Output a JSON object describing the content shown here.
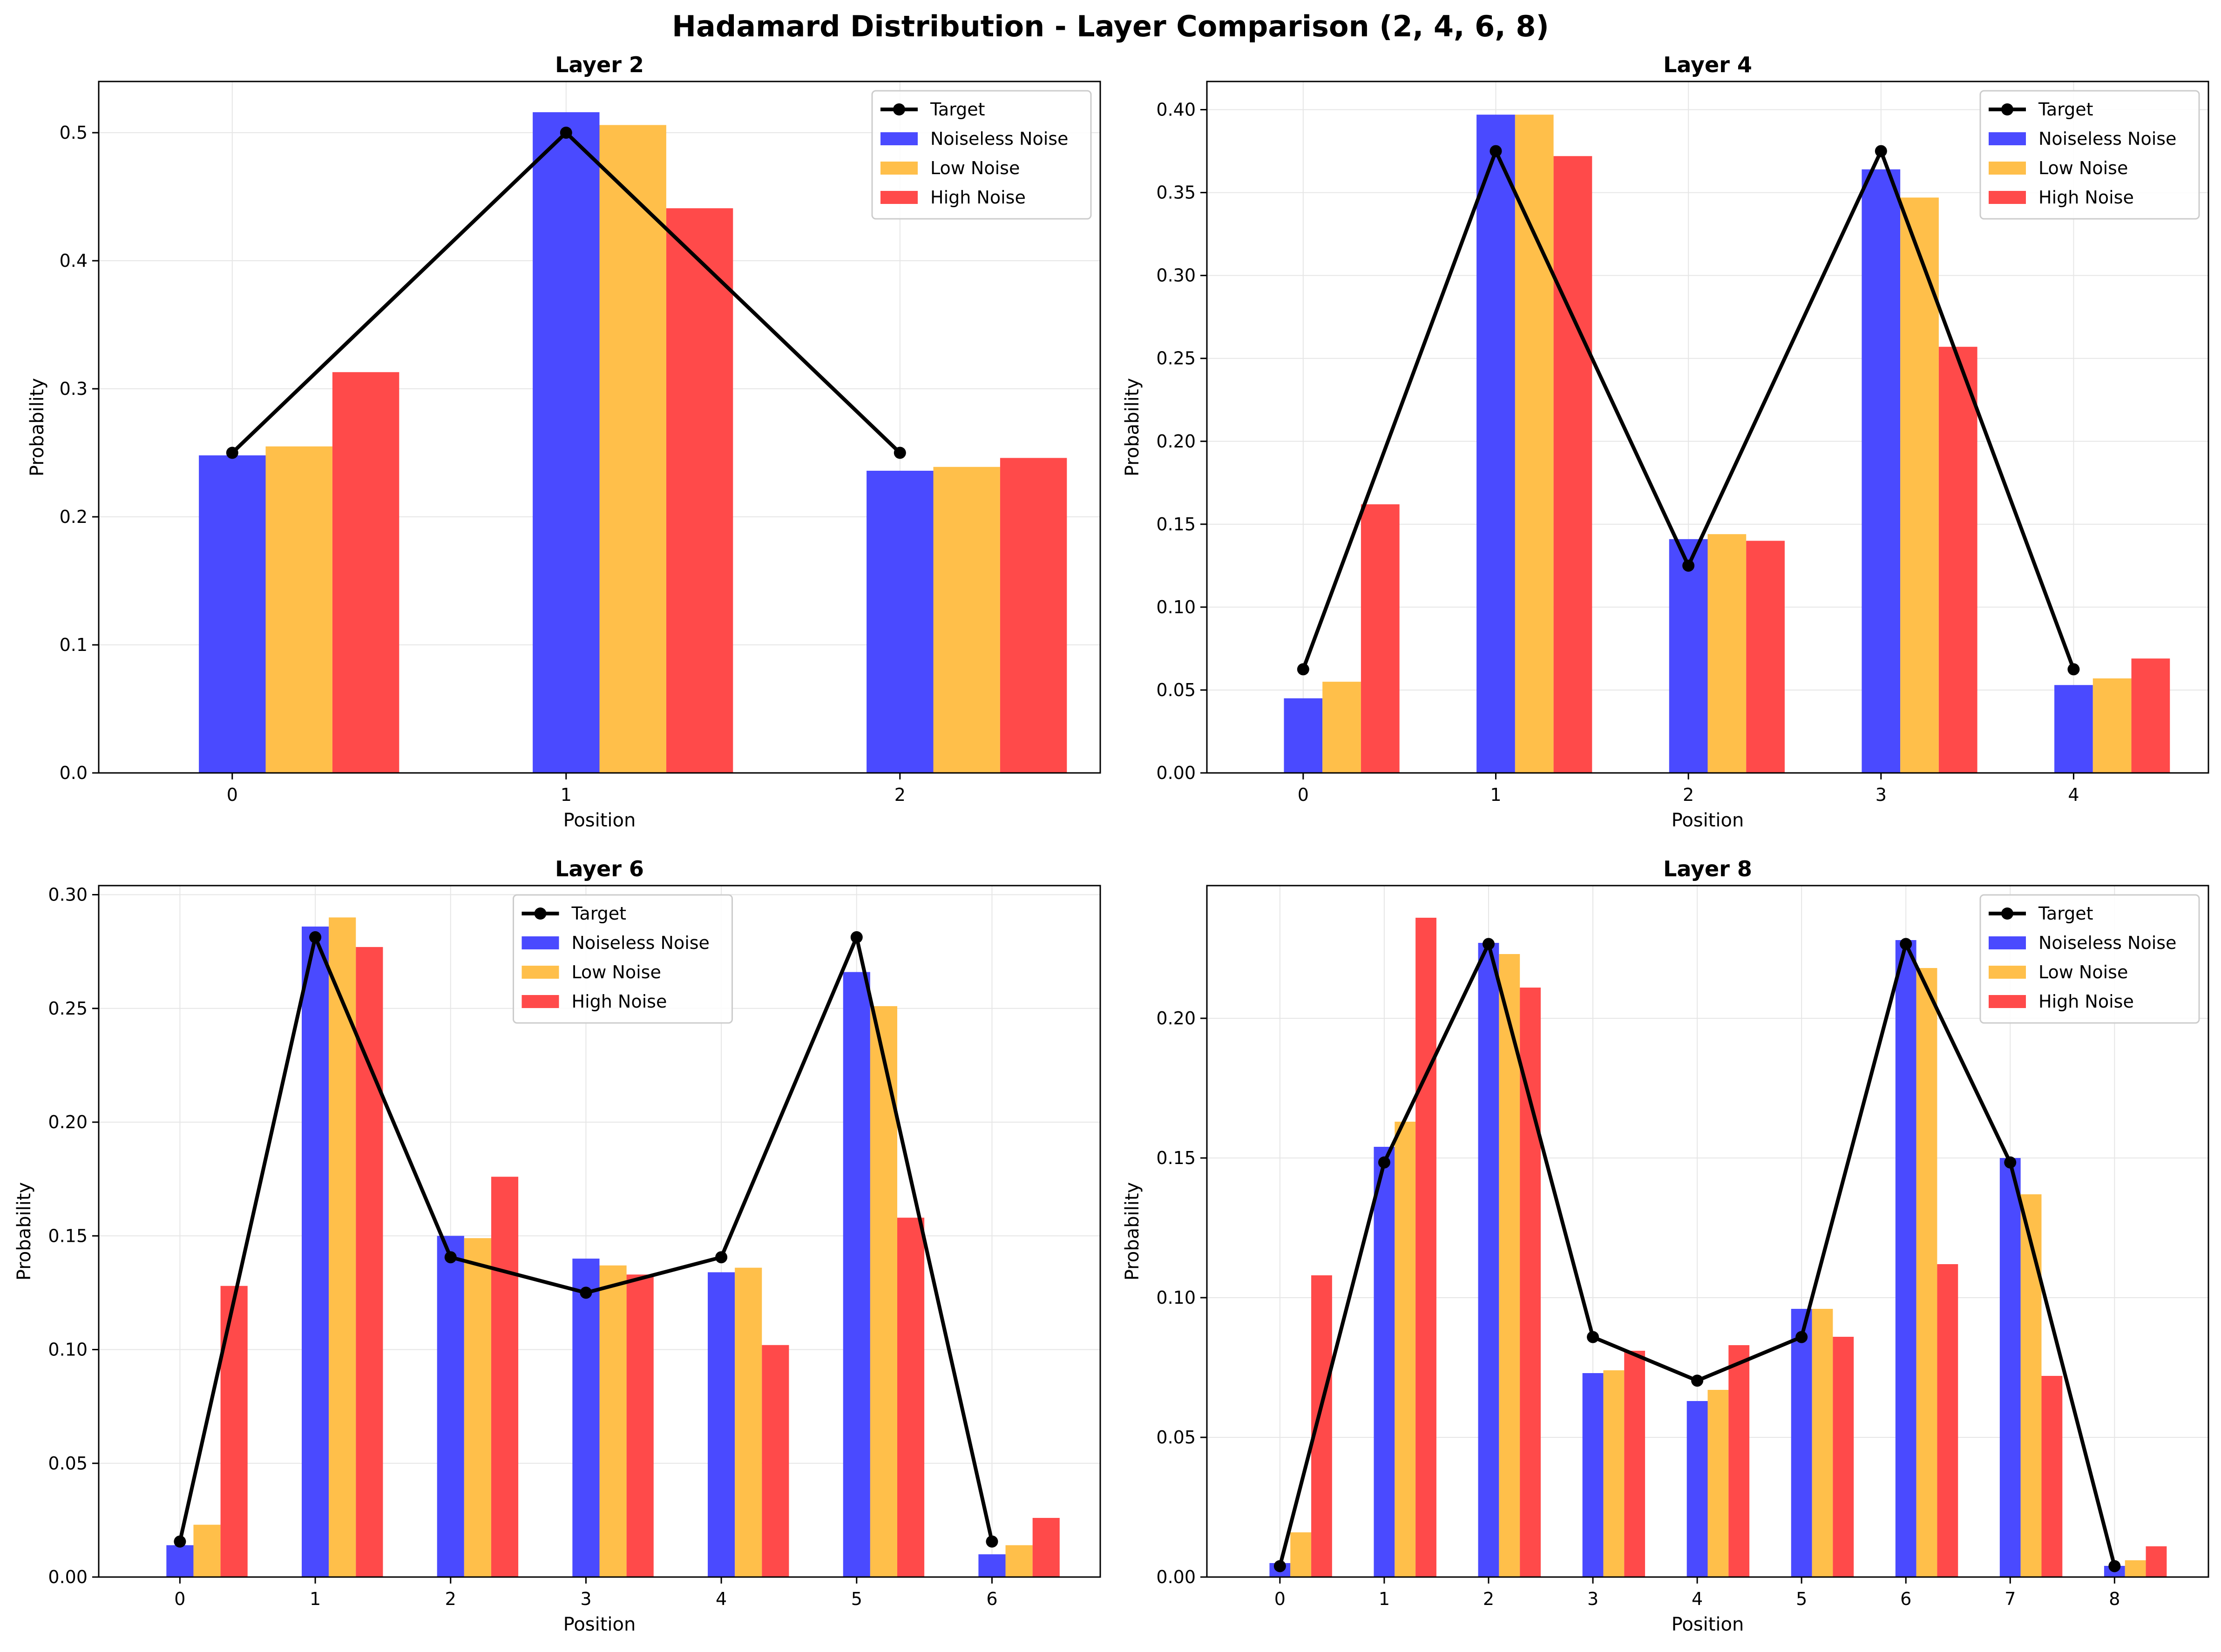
{
  "title": "Hadamard Distribution - Layer Comparison (2, 4, 6, 8)",
  "colors": {
    "target": "#000000",
    "noiseless": "#4a4aff",
    "low": "#ffbf4a",
    "high": "#ff4a4a",
    "grid": "#e6e6e6"
  },
  "legend_labels": [
    "Target",
    "Noiseless Noise",
    "Low Noise",
    "High Noise"
  ],
  "chart_data": [
    {
      "type": "bar",
      "title": "Layer 2",
      "xlabel": "Position",
      "ylabel": "Probability",
      "categories": [
        "0",
        "1",
        "2"
      ],
      "ylim": [
        0,
        0.54
      ],
      "yticks": [
        "0.0",
        "0.1",
        "0.2",
        "0.3",
        "0.4",
        "0.5"
      ],
      "legend_position": "top-right",
      "series": [
        {
          "name": "Noiseless Noise",
          "values": [
            0.248,
            0.516,
            0.236
          ]
        },
        {
          "name": "Low Noise",
          "values": [
            0.255,
            0.506,
            0.239
          ]
        },
        {
          "name": "High Noise",
          "values": [
            0.313,
            0.441,
            0.246
          ]
        }
      ],
      "target": {
        "name": "Target",
        "values": [
          0.25,
          0.5,
          0.25
        ]
      }
    },
    {
      "type": "bar",
      "title": "Layer 4",
      "xlabel": "Position",
      "ylabel": "Probability",
      "categories": [
        "0",
        "1",
        "2",
        "3",
        "4"
      ],
      "ylim": [
        0,
        0.417
      ],
      "yticks": [
        "0.00",
        "0.05",
        "0.10",
        "0.15",
        "0.20",
        "0.25",
        "0.30",
        "0.35",
        "0.40"
      ],
      "legend_position": "top-right",
      "series": [
        {
          "name": "Noiseless Noise",
          "values": [
            0.045,
            0.397,
            0.141,
            0.364,
            0.053
          ]
        },
        {
          "name": "Low Noise",
          "values": [
            0.055,
            0.397,
            0.144,
            0.347,
            0.057
          ]
        },
        {
          "name": "High Noise",
          "values": [
            0.162,
            0.372,
            0.14,
            0.257,
            0.069
          ]
        }
      ],
      "target": {
        "name": "Target",
        "values": [
          0.0625,
          0.375,
          0.125,
          0.375,
          0.0625
        ]
      }
    },
    {
      "type": "bar",
      "title": "Layer 6",
      "xlabel": "Position",
      "ylabel": "Probability",
      "categories": [
        "0",
        "1",
        "2",
        "3",
        "4",
        "5",
        "6"
      ],
      "ylim": [
        0,
        0.304
      ],
      "yticks": [
        "0.00",
        "0.05",
        "0.10",
        "0.15",
        "0.20",
        "0.25",
        "0.30"
      ],
      "legend_position": "top-center",
      "series": [
        {
          "name": "Noiseless Noise",
          "values": [
            0.014,
            0.286,
            0.15,
            0.14,
            0.134,
            0.266,
            0.01
          ]
        },
        {
          "name": "Low Noise",
          "values": [
            0.023,
            0.29,
            0.149,
            0.137,
            0.136,
            0.251,
            0.014
          ]
        },
        {
          "name": "High Noise",
          "values": [
            0.128,
            0.277,
            0.176,
            0.133,
            0.102,
            0.158,
            0.026
          ]
        }
      ],
      "target": {
        "name": "Target",
        "values": [
          0.0156,
          0.2813,
          0.1406,
          0.125,
          0.1406,
          0.2813,
          0.0156
        ]
      }
    },
    {
      "type": "bar",
      "title": "Layer 8",
      "xlabel": "Position",
      "ylabel": "Probability",
      "categories": [
        "0",
        "1",
        "2",
        "3",
        "4",
        "5",
        "6",
        "7",
        "8"
      ],
      "ylim": [
        0,
        0.2475
      ],
      "yticks": [
        "0.00",
        "0.05",
        "0.10",
        "0.15",
        "0.20"
      ],
      "legend_position": "top-right",
      "series": [
        {
          "name": "Noiseless Noise",
          "values": [
            0.005,
            0.154,
            0.227,
            0.073,
            0.063,
            0.096,
            0.228,
            0.15,
            0.004
          ]
        },
        {
          "name": "Low Noise",
          "values": [
            0.016,
            0.163,
            0.223,
            0.074,
            0.067,
            0.096,
            0.218,
            0.137,
            0.006
          ]
        },
        {
          "name": "High Noise",
          "values": [
            0.108,
            0.236,
            0.211,
            0.081,
            0.083,
            0.086,
            0.112,
            0.072,
            0.011
          ]
        }
      ],
      "target": {
        "name": "Target",
        "values": [
          0.0039,
          0.1484,
          0.2266,
          0.0859,
          0.0703,
          0.0859,
          0.2266,
          0.1484,
          0.0039
        ]
      }
    }
  ]
}
